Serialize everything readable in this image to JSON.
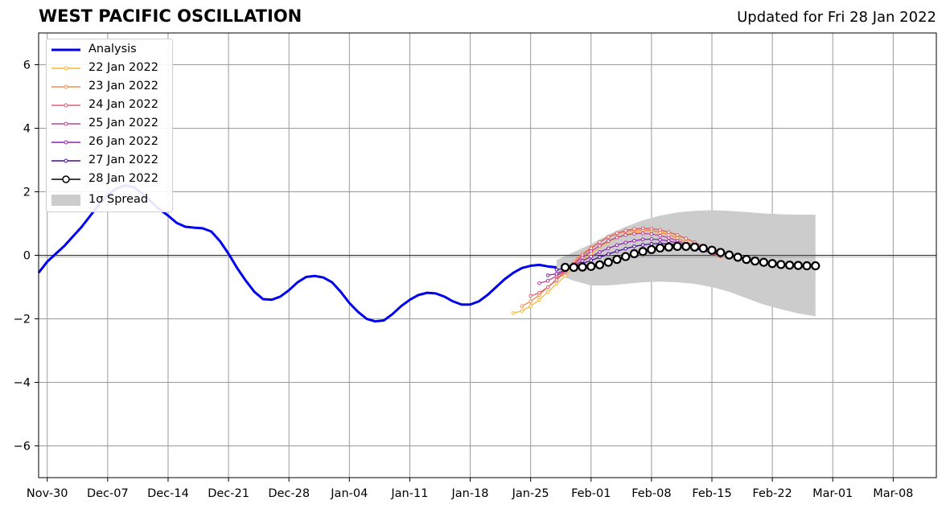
{
  "title": "WEST PACIFIC OSCILLATION",
  "subtitle": "Updated for Fri 28 Jan 2022",
  "chart_data": {
    "type": "line",
    "ylim": [
      -7,
      7
    ],
    "yticks": [
      -6,
      -4,
      -2,
      0,
      2,
      4,
      6
    ],
    "ytick_labels": [
      "−6",
      "−4",
      "−2",
      "0",
      "2",
      "4",
      "6"
    ],
    "xlim": [
      "2021-11-29",
      "2022-03-13"
    ],
    "xticks": [
      "2021-11-30",
      "2021-12-07",
      "2021-12-14",
      "2021-12-21",
      "2021-12-28",
      "2022-01-04",
      "2022-01-11",
      "2022-01-18",
      "2022-01-25",
      "2022-02-01",
      "2022-02-08",
      "2022-02-15",
      "2022-02-22",
      "2022-03-01",
      "2022-03-08"
    ],
    "xtick_labels": [
      "Nov-30",
      "Dec-07",
      "Dec-14",
      "Dec-21",
      "Dec-28",
      "Jan-04",
      "Jan-11",
      "Jan-18",
      "Jan-25",
      "Feb-01",
      "Feb-08",
      "Feb-15",
      "Feb-22",
      "Mar-01",
      "Mar-08"
    ],
    "grid": true,
    "legend_position": "top-left",
    "analysis": {
      "name": "Analysis",
      "color": "#0000ee",
      "x": [
        "2021-11-29",
        "2021-11-30",
        "2021-12-01",
        "2021-12-02",
        "2021-12-03",
        "2021-12-04",
        "2021-12-05",
        "2021-12-06",
        "2021-12-07",
        "2021-12-08",
        "2021-12-09",
        "2021-12-10",
        "2021-12-11",
        "2021-12-12",
        "2021-12-13",
        "2021-12-14",
        "2021-12-15",
        "2021-12-16",
        "2021-12-17",
        "2021-12-18",
        "2021-12-19",
        "2021-12-20",
        "2021-12-21",
        "2021-12-22",
        "2021-12-23",
        "2021-12-24",
        "2021-12-25",
        "2021-12-26",
        "2021-12-27",
        "2021-12-28",
        "2021-12-29",
        "2021-12-30",
        "2021-12-31",
        "2022-01-01",
        "2022-01-02",
        "2022-01-03",
        "2022-01-04",
        "2022-01-05",
        "2022-01-06",
        "2022-01-07",
        "2022-01-08",
        "2022-01-09",
        "2022-01-10",
        "2022-01-11",
        "2022-01-12",
        "2022-01-13",
        "2022-01-14",
        "2022-01-15",
        "2022-01-16",
        "2022-01-17",
        "2022-01-18",
        "2022-01-19",
        "2022-01-20",
        "2022-01-21",
        "2022-01-22",
        "2022-01-23",
        "2022-01-24",
        "2022-01-25",
        "2022-01-26",
        "2022-01-27",
        "2022-01-28"
      ],
      "y": [
        -0.55,
        -0.2,
        0.05,
        0.3,
        0.6,
        0.9,
        1.25,
        1.6,
        1.9,
        2.1,
        2.2,
        2.15,
        1.95,
        1.7,
        1.45,
        1.25,
        1.02,
        0.9,
        0.87,
        0.85,
        0.75,
        0.45,
        0.05,
        -0.4,
        -0.8,
        -1.15,
        -1.38,
        -1.4,
        -1.3,
        -1.1,
        -0.85,
        -0.68,
        -0.65,
        -0.7,
        -0.85,
        -1.15,
        -1.5,
        -1.78,
        -2.0,
        -2.08,
        -2.05,
        -1.85,
        -1.6,
        -1.4,
        -1.25,
        -1.18,
        -1.2,
        -1.3,
        -1.45,
        -1.55,
        -1.55,
        -1.45,
        -1.25,
        -1.0,
        -0.75,
        -0.55,
        -0.4,
        -0.33,
        -0.3,
        -0.35,
        -0.38
      ]
    },
    "spread": {
      "name": "1σ Spread",
      "color": "#cccccc",
      "x": [
        "2022-01-28",
        "2022-01-30",
        "2022-02-01",
        "2022-02-03",
        "2022-02-05",
        "2022-02-07",
        "2022-02-09",
        "2022-02-11",
        "2022-02-13",
        "2022-02-15",
        "2022-02-17",
        "2022-02-19",
        "2022-02-21",
        "2022-02-23",
        "2022-02-25",
        "2022-02-27"
      ],
      "upper": [
        -0.15,
        0.1,
        0.35,
        0.65,
        0.9,
        1.1,
        1.25,
        1.35,
        1.4,
        1.42,
        1.4,
        1.36,
        1.32,
        1.29,
        1.28,
        1.28
      ],
      "lower": [
        -0.6,
        -0.8,
        -0.95,
        -0.95,
        -0.9,
        -0.85,
        -0.83,
        -0.85,
        -0.9,
        -1.0,
        -1.15,
        -1.35,
        -1.55,
        -1.7,
        -1.83,
        -1.92
      ]
    },
    "series": [
      {
        "name": "22 Jan 2022",
        "color": "#f7b636",
        "x_start": "2022-01-23",
        "values": [
          -1.82,
          -1.75,
          -1.6,
          -1.4,
          -1.15,
          -0.9,
          -0.65,
          -0.4,
          -0.18,
          0.05,
          0.25,
          0.42,
          0.56,
          0.66,
          0.72,
          0.76,
          0.77,
          0.75,
          0.7,
          0.62,
          0.52,
          0.4,
          0.28,
          0.16,
          0.05,
          -0.05
        ]
      },
      {
        "name": "23 Jan 2022",
        "color": "#f48c4a",
        "x_start": "2022-01-24",
        "values": [
          -1.6,
          -1.45,
          -1.25,
          -1.0,
          -0.75,
          -0.48,
          -0.2,
          0.05,
          0.25,
          0.42,
          0.57,
          0.68,
          0.75,
          0.79,
          0.8,
          0.78,
          0.72,
          0.64,
          0.54,
          0.42,
          0.3,
          0.18,
          0.06,
          -0.04
        ]
      },
      {
        "name": "24 Jan 2022",
        "color": "#e0606e",
        "x_start": "2022-01-25",
        "values": [
          -1.28,
          -1.18,
          -1.0,
          -0.78,
          -0.52,
          -0.26,
          0.0,
          0.22,
          0.42,
          0.58,
          0.7,
          0.78,
          0.83,
          0.85,
          0.84,
          0.8,
          0.73,
          0.64,
          0.53,
          0.41,
          0.29,
          0.17,
          0.06
        ]
      },
      {
        "name": "25 Jan 2022",
        "color": "#bb4494",
        "x_start": "2022-01-26",
        "values": [
          -0.88,
          -0.8,
          -0.65,
          -0.48,
          -0.28,
          -0.07,
          0.13,
          0.3,
          0.45,
          0.56,
          0.64,
          0.68,
          0.69,
          0.67,
          0.62,
          0.55,
          0.46,
          0.36,
          0.26,
          0.16,
          0.07,
          -0.02
        ]
      },
      {
        "name": "26 Jan 2022",
        "color": "#8e22a8",
        "x_start": "2022-01-27",
        "values": [
          -0.63,
          -0.58,
          -0.46,
          -0.32,
          -0.18,
          -0.04,
          0.1,
          0.22,
          0.32,
          0.4,
          0.46,
          0.5,
          0.51,
          0.49,
          0.45,
          0.39,
          0.32,
          0.24,
          0.16,
          0.08,
          0.0
        ]
      },
      {
        "name": "27 Jan 2022",
        "color": "#4b0a98",
        "x_start": "2022-01-28",
        "values": [
          -0.45,
          -0.42,
          -0.35,
          -0.26,
          -0.16,
          -0.06,
          0.04,
          0.13,
          0.21,
          0.28,
          0.33,
          0.36,
          0.37,
          0.36,
          0.33,
          0.28,
          0.22,
          0.15,
          0.08,
          0.02
        ]
      },
      {
        "name": "28 Jan 2022",
        "color": "#000000",
        "x_start": "2022-01-29",
        "values": [
          -0.38,
          -0.38,
          -0.37,
          -0.35,
          -0.3,
          -0.22,
          -0.13,
          -0.04,
          0.05,
          0.12,
          0.18,
          0.23,
          0.26,
          0.28,
          0.28,
          0.26,
          0.22,
          0.16,
          0.09,
          0.01,
          -0.06,
          -0.13,
          -0.18,
          -0.22,
          -0.26,
          -0.29,
          -0.31,
          -0.32,
          -0.33,
          -0.33
        ]
      }
    ]
  }
}
